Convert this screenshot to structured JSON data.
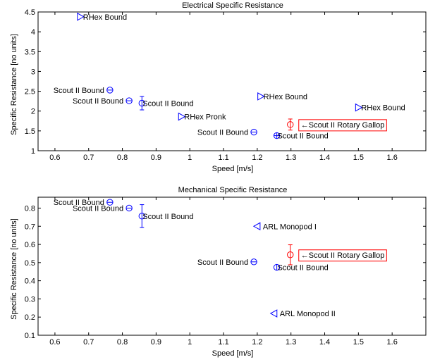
{
  "chart_data": [
    {
      "type": "scatter",
      "title": "Electrical Specific Resistance",
      "xlabel": "Speed [m/s]",
      "ylabel": "Specific Resistance [no units]",
      "xlim": [
        0.55,
        1.7
      ],
      "ylim": [
        1,
        4.5
      ],
      "xticks": [
        0.6,
        0.7,
        0.8,
        0.9,
        1,
        1.1,
        1.2,
        1.3,
        1.4,
        1.5,
        1.6
      ],
      "xtick_labels": [
        "0.6",
        "0.7",
        "0.8",
        "0.9",
        "1",
        "1.1",
        "1.2",
        "1.3",
        "1.4",
        "1.5",
        "1.6"
      ],
      "yticks": [
        1,
        1.5,
        2,
        2.5,
        3,
        3.5,
        4,
        4.5
      ],
      "ytick_labels": [
        "1",
        "1.5",
        "2",
        "2.5",
        "3",
        "3.5",
        "4",
        "4.5"
      ],
      "grid": false,
      "points": [
        {
          "x": 0.675,
          "y": 4.38,
          "marker": "triangle-right",
          "color": "#0000ff",
          "label": "RHex Bound",
          "label_side": "right"
        },
        {
          "x": 0.763,
          "y": 2.53,
          "marker": "circle-minus",
          "color": "#0000ff",
          "label": "Scout II Bound",
          "label_side": "left"
        },
        {
          "x": 0.82,
          "y": 2.26,
          "marker": "circle-minus",
          "color": "#0000ff",
          "label": "Scout II Bound",
          "label_side": "left"
        },
        {
          "x": 0.858,
          "y": 2.2,
          "marker": "circle",
          "color": "#0000ff",
          "label": "Scout II Bound",
          "label_side": "right",
          "err": [
            0.17,
            0.17
          ]
        },
        {
          "x": 0.975,
          "y": 1.86,
          "marker": "triangle-right",
          "color": "#0000ff",
          "label": "RHex Pronk",
          "label_side": "right"
        },
        {
          "x": 1.21,
          "y": 2.37,
          "marker": "triangle-right",
          "color": "#0000ff",
          "label": "RHex Bound",
          "label_side": "right"
        },
        {
          "x": 1.19,
          "y": 1.47,
          "marker": "circle-minus",
          "color": "#0000ff",
          "label": "Scout II Bound",
          "label_side": "left"
        },
        {
          "x": 1.258,
          "y": 1.38,
          "marker": "circle-plus",
          "color": "#0000ff",
          "label": "Scout II Bound",
          "label_side": "right"
        },
        {
          "x": 1.5,
          "y": 2.09,
          "marker": "triangle-right",
          "color": "#0000ff",
          "label": "RHex Bound",
          "label_side": "right"
        },
        {
          "x": 1.298,
          "y": 1.66,
          "marker": "circle",
          "color": "#ff0000",
          "label": "←Scout II Rotary Gallop",
          "label_side": "right",
          "err": [
            0.14,
            0.14
          ],
          "boxed": true
        }
      ]
    },
    {
      "type": "scatter",
      "title": "Mechanical Specific Resistance",
      "xlabel": "Speed [m/s]",
      "ylabel": "Specific Resistance [no units]",
      "xlim": [
        0.55,
        1.7
      ],
      "ylim": [
        0.1,
        0.86
      ],
      "xticks": [
        0.6,
        0.7,
        0.8,
        0.9,
        1,
        1.1,
        1.2,
        1.3,
        1.4,
        1.5,
        1.6
      ],
      "xtick_labels": [
        "0.6",
        "0.7",
        "0.8",
        "0.9",
        "1",
        "1.1",
        "1.2",
        "1.3",
        "1.4",
        "1.5",
        "1.6"
      ],
      "yticks": [
        0.1,
        0.2,
        0.3,
        0.4,
        0.5,
        0.6,
        0.7,
        0.8
      ],
      "ytick_labels": [
        "0.1",
        "0.2",
        "0.3",
        "0.4",
        "0.5",
        "0.6",
        "0.7",
        "0.8"
      ],
      "grid": false,
      "points": [
        {
          "x": 0.763,
          "y": 0.832,
          "marker": "circle-minus",
          "color": "#0000ff",
          "label": "Scout II Bound",
          "label_side": "left"
        },
        {
          "x": 0.82,
          "y": 0.8,
          "marker": "circle-minus",
          "color": "#0000ff",
          "label": "Scout II Bound",
          "label_side": "left"
        },
        {
          "x": 0.858,
          "y": 0.756,
          "marker": "circle",
          "color": "#0000ff",
          "label": "Scout II Bound",
          "label_side": "right",
          "err": [
            0.063,
            0.063
          ]
        },
        {
          "x": 1.2,
          "y": 0.7,
          "marker": "triangle-left",
          "color": "#0000ff",
          "label": "ARL Monopod I",
          "label_side": "right"
        },
        {
          "x": 1.19,
          "y": 0.504,
          "marker": "circle-minus",
          "color": "#0000ff",
          "label": "Scout II Bound",
          "label_side": "left"
        },
        {
          "x": 1.258,
          "y": 0.474,
          "marker": "circle-bar",
          "color": "#0000ff",
          "label": "Scout II Bound",
          "label_side": "right"
        },
        {
          "x": 1.25,
          "y": 0.22,
          "marker": "triangle-left",
          "color": "#0000ff",
          "label": "ARL Monopod II",
          "label_side": "right"
        },
        {
          "x": 1.298,
          "y": 0.543,
          "marker": "circle",
          "color": "#ff0000",
          "label": "←Scout II Rotary Gallop",
          "label_side": "right",
          "err": [
            0.055,
            0.055
          ],
          "boxed": true
        }
      ]
    }
  ]
}
